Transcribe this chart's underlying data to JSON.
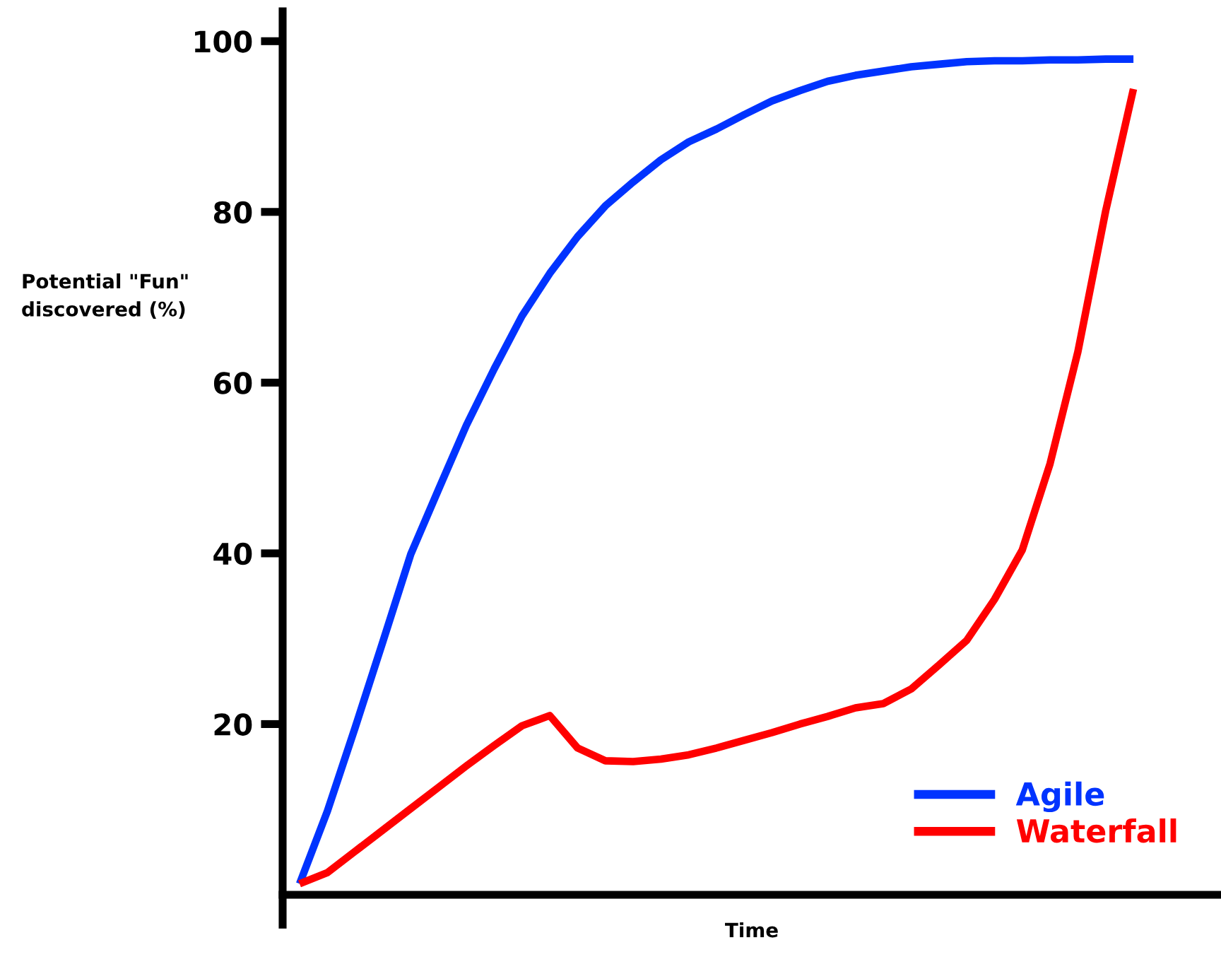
{
  "chart_data": {
    "type": "line",
    "xlabel": "Time",
    "ylabel": "Potential \"Fun\"\ndiscovered (%)",
    "categories": [
      null,
      null,
      null,
      null,
      null,
      null,
      null,
      null,
      null,
      null,
      null,
      null,
      null,
      null,
      null,
      null,
      null,
      null,
      null,
      null,
      null,
      null,
      null,
      null,
      null,
      null,
      null,
      null,
      null,
      null,
      null
    ],
    "series": [
      {
        "name": "Agile",
        "color": "#0033ff",
        "values": [
          1.3,
          9.8,
          19.6,
          29.7,
          39.9,
          47.5,
          55,
          61.6,
          67.8,
          72.8,
          77.1,
          80.7,
          83.5,
          86.1,
          88.2,
          89.7,
          91.4,
          93.0,
          94.2,
          95.3,
          96.0,
          96.5,
          97.0,
          97.3,
          97.6,
          97.7,
          97.7,
          97.8,
          97.8,
          97.9,
          97.9
        ]
      },
      {
        "name": "Waterfall",
        "color": "#ff0000",
        "values": [
          1.3,
          2.6,
          5.1,
          7.6,
          10.1,
          12.6,
          15.1,
          17.5,
          19.8,
          21.0,
          17.2,
          15.7,
          15.6,
          15.9,
          16.4,
          17.2,
          18.1,
          19.0,
          20.0,
          20.9,
          21.9,
          22.4,
          24.1,
          26.9,
          29.8,
          34.6,
          40.4,
          50.5,
          63.6,
          80.1,
          94.4
        ]
      }
    ],
    "ylim": [
      0,
      103.5
    ],
    "yticks": [
      20,
      40,
      60,
      80,
      100
    ],
    "tick_labels": "y",
    "grid": false,
    "legend": "bottom right",
    "marker": "none",
    "line_style": "solid"
  }
}
